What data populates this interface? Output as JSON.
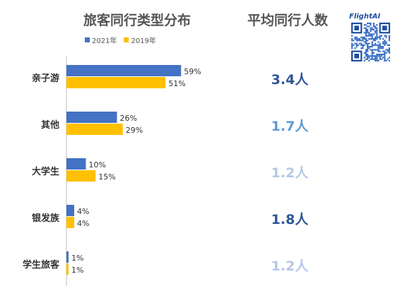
{
  "chart_data": {
    "type": "bar",
    "orientation": "horizontal",
    "title": "旅客同行类型分布",
    "categories": [
      "亲子游",
      "其他",
      "大学生",
      "银发族",
      "学生旅客"
    ],
    "series": [
      {
        "name": "2021年",
        "values": [
          59,
          26,
          10,
          4,
          1
        ],
        "color": "#4472c4"
      },
      {
        "name": "2019年",
        "values": [
          51,
          29,
          15,
          4,
          1
        ],
        "color": "#ffc000"
      }
    ],
    "value_suffix": "%",
    "legend_position": "top",
    "xlim": [
      0,
      100
    ],
    "grid": false
  },
  "avg_panel": {
    "title": "平均同行人数",
    "values": [
      {
        "label": "3.4人",
        "color": "#2f5597"
      },
      {
        "label": "1.7人",
        "color": "#5b9bd5"
      },
      {
        "label": "1.2人",
        "color": "#b4c7e7"
      },
      {
        "label": "1.8人",
        "color": "#2f5597"
      },
      {
        "label": "1.2人",
        "color": "#b4c7e7"
      }
    ]
  },
  "logo": {
    "text": "FlightAI"
  },
  "qr_icon": "qr-code-icon"
}
